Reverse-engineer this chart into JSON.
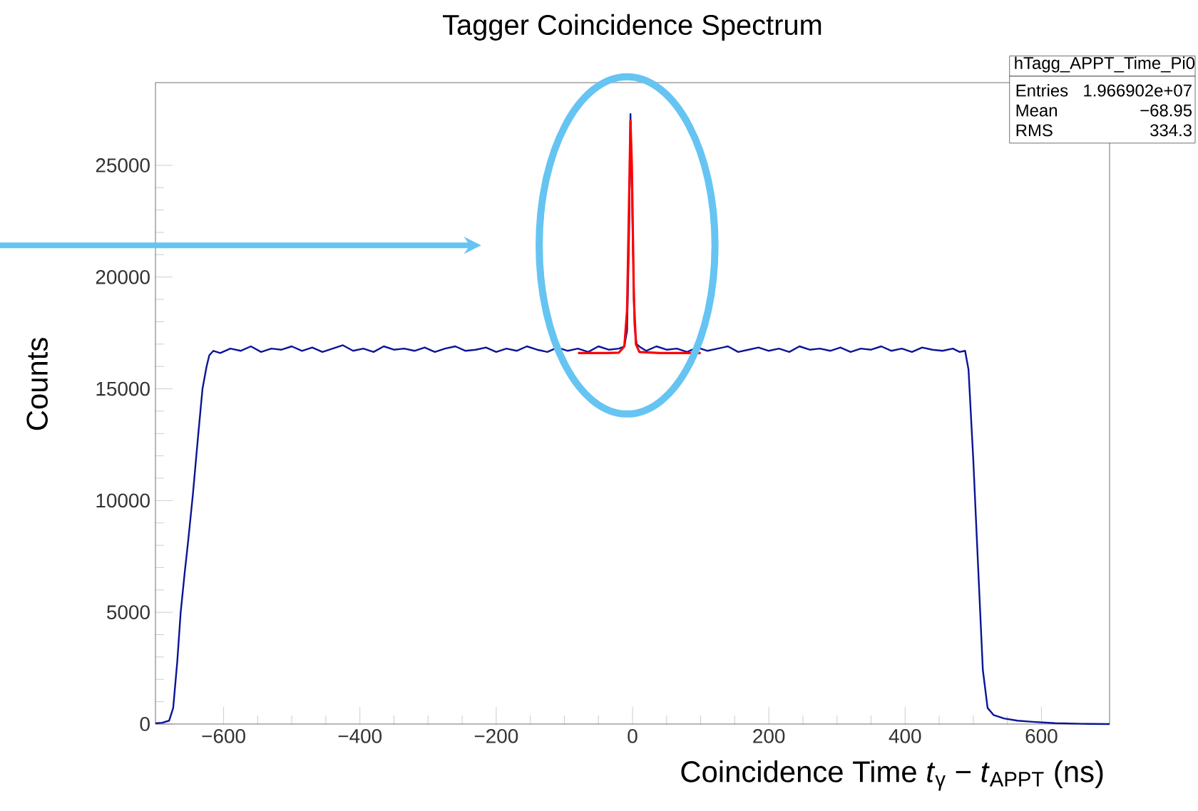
{
  "chart_data": {
    "type": "line",
    "title": "Tagger Coincidence Spectrum",
    "xlabel": "Coincidence Time *t*$_{γ}$ − *t*$_{APPT}$ (ns)",
    "ylabel": "Counts",
    "annotations": [
      "hTagg_APPT_Time_Pi0",
      "Entries",
      "1.966902e+07",
      "Mean",
      "−68.95",
      "RMS",
      "334.3"
    ],
    "xlim": [
      -700,
      700
    ],
    "ylim": [
      0,
      28700
    ],
    "xticks": [
      {
        "value": -600,
        "label": "−600"
      },
      {
        "value": -400,
        "label": "−400"
      },
      {
        "value": -200,
        "label": "−200"
      },
      0,
      200,
      400,
      600
    ],
    "yticks": [
      0,
      5000,
      10000,
      15000,
      20000,
      25000
    ],
    "series": [
      {
        "color": "#0a1496",
        "x": [
          -700,
          -690,
          -680,
          -674,
          -668,
          -663,
          -657,
          -652,
          -645,
          -638,
          -631,
          -625,
          -621,
          -615,
          -605,
          -590,
          -575,
          -560,
          -545,
          -530,
          -515,
          -500,
          -485,
          -470,
          -455,
          -440,
          -425,
          -410,
          -395,
          -380,
          -365,
          -350,
          -335,
          -320,
          -305,
          -290,
          -275,
          -260,
          -245,
          -230,
          -215,
          -200,
          -185,
          -170,
          -155,
          -140,
          -125,
          -110,
          -95,
          -80,
          -65,
          -50,
          -35,
          -20,
          -12,
          -8,
          -5,
          -3,
          0,
          3,
          6,
          12,
          20,
          35,
          50,
          65,
          80,
          95,
          110,
          125,
          140,
          155,
          170,
          185,
          200,
          215,
          230,
          245,
          260,
          275,
          290,
          305,
          320,
          335,
          350,
          365,
          380,
          395,
          410,
          425,
          440,
          455,
          470,
          480,
          488,
          493,
          500,
          507,
          514,
          521,
          530,
          545,
          565,
          587,
          620,
          660,
          700
        ],
        "values": [
          30,
          60,
          150,
          720,
          2800,
          5000,
          6800,
          8200,
          10300,
          12700,
          15000,
          16000,
          16500,
          16700,
          16600,
          16800,
          16700,
          16900,
          16650,
          16800,
          16750,
          16900,
          16700,
          16850,
          16650,
          16800,
          16950,
          16700,
          16800,
          16650,
          16900,
          16750,
          16800,
          16700,
          16850,
          16650,
          16800,
          16900,
          16700,
          16750,
          16850,
          16650,
          16800,
          16700,
          16900,
          16750,
          16650,
          16850,
          16700,
          16800,
          16650,
          16900,
          16750,
          16800,
          16900,
          17600,
          22000,
          27300,
          22500,
          17800,
          17000,
          16850,
          16700,
          16900,
          16750,
          16800,
          16650,
          16850,
          16700,
          16800,
          16900,
          16650,
          16750,
          16850,
          16700,
          16800,
          16650,
          16900,
          16750,
          16800,
          16700,
          16850,
          16650,
          16800,
          16750,
          16900,
          16700,
          16800,
          16650,
          16850,
          16750,
          16700,
          16800,
          16650,
          16700,
          15860,
          11830,
          7100,
          2430,
          720,
          400,
          250,
          150,
          100,
          40,
          10,
          0
        ]
      },
      {
        "color": "#ff0000",
        "x": [
          -80,
          -40,
          -20,
          -12,
          -8,
          -5,
          -3,
          -1,
          2,
          5,
          10,
          40,
          100
        ],
        "values": [
          16600,
          16600,
          16620,
          16900,
          18500,
          23500,
          27000,
          25000,
          19000,
          17000,
          16650,
          16600,
          16600
        ]
      }
    ]
  }
}
